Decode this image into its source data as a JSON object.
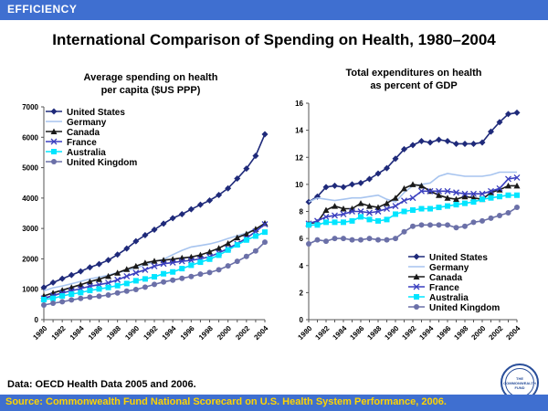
{
  "header": {
    "label": "EFFICIENCY"
  },
  "title": "International Comparison of Spending on Health, 1980–2004",
  "footnote": "Data: OECD Health Data 2005 and 2006.",
  "source": "Source: Commonwealth Fund National Scorecard on U.S. Health System Performance, 2006.",
  "logo": {
    "text": "THE COMMONWEALTH FUND"
  },
  "chart_data": [
    {
      "type": "line",
      "title_lines": [
        "Average spending on health",
        "per capita ($US PPP)"
      ],
      "xlabel": "",
      "ylabel": "",
      "ylim": [
        0,
        7000
      ],
      "yticks": [
        0,
        1000,
        2000,
        3000,
        4000,
        5000,
        6000,
        7000
      ],
      "xticks": [
        1980,
        1982,
        1984,
        1986,
        1988,
        1990,
        1992,
        1994,
        1996,
        1998,
        2000,
        2002,
        2004
      ],
      "x": [
        1980,
        1981,
        1982,
        1983,
        1984,
        1985,
        1986,
        1987,
        1988,
        1989,
        1990,
        1991,
        1992,
        1993,
        1994,
        1995,
        1996,
        1997,
        1998,
        1999,
        2000,
        2001,
        2002,
        2003,
        2004
      ],
      "legend_position": "top-left",
      "series": [
        {
          "name": "United States",
          "color": "#1f2a7a",
          "marker": "diamond",
          "values": [
            1060,
            1220,
            1350,
            1470,
            1590,
            1720,
            1830,
            1960,
            2140,
            2340,
            2580,
            2780,
            2960,
            3160,
            3340,
            3470,
            3630,
            3780,
            3920,
            4100,
            4320,
            4640,
            4970,
            5390,
            6100
          ]
        },
        {
          "name": "Germany",
          "color": "#a7c4ef",
          "marker": "none",
          "values": [
            950,
            1050,
            1110,
            1180,
            1260,
            1340,
            1400,
            1460,
            1550,
            1610,
            1700,
            1800,
            1910,
            1990,
            2140,
            2280,
            2390,
            2440,
            2490,
            2570,
            2670,
            2760,
            2850,
            2990,
            3110
          ]
        },
        {
          "name": "Canada",
          "color": "#1a1a1a",
          "marker": "triangle",
          "values": [
            780,
            880,
            970,
            1060,
            1150,
            1250,
            1330,
            1430,
            1540,
            1660,
            1760,
            1870,
            1930,
            1960,
            1990,
            2030,
            2060,
            2130,
            2230,
            2350,
            2510,
            2700,
            2820,
            2980,
            3170
          ]
        },
        {
          "name": "France",
          "color": "#3a3fbf",
          "marker": "cross",
          "values": [
            700,
            790,
            880,
            950,
            1020,
            1100,
            1150,
            1210,
            1310,
            1430,
            1540,
            1640,
            1760,
            1840,
            1880,
            1920,
            1950,
            2000,
            2070,
            2200,
            2340,
            2500,
            2680,
            2900,
            3140
          ]
        },
        {
          "name": "Australia",
          "color": "#00e5ff",
          "marker": "square",
          "values": [
            660,
            700,
            780,
            840,
            890,
            960,
            1010,
            1060,
            1120,
            1190,
            1280,
            1340,
            1410,
            1510,
            1570,
            1680,
            1790,
            1890,
            1990,
            2120,
            2290,
            2460,
            2620,
            2750,
            2880
          ]
        },
        {
          "name": "United Kingdom",
          "color": "#6b70a8",
          "marker": "circle",
          "values": [
            480,
            540,
            590,
            650,
            700,
            740,
            770,
            810,
            880,
            940,
            990,
            1070,
            1160,
            1240,
            1300,
            1360,
            1420,
            1500,
            1550,
            1640,
            1770,
            1920,
            2080,
            2260,
            2550
          ]
        }
      ]
    },
    {
      "type": "line",
      "title_lines": [
        "Total expenditures on health",
        "as percent of GDP"
      ],
      "xlabel": "",
      "ylabel": "",
      "ylim": [
        0,
        16
      ],
      "yticks": [
        0,
        2,
        4,
        6,
        8,
        10,
        12,
        14,
        16
      ],
      "xticks": [
        1980,
        1982,
        1984,
        1986,
        1988,
        1990,
        1992,
        1994,
        1996,
        1998,
        2000,
        2002,
        2004
      ],
      "x": [
        1980,
        1981,
        1982,
        1983,
        1984,
        1985,
        1986,
        1987,
        1988,
        1989,
        1990,
        1991,
        1992,
        1993,
        1994,
        1995,
        1996,
        1997,
        1998,
        1999,
        2000,
        2001,
        2002,
        2003,
        2004
      ],
      "legend_position": "bottom-right",
      "series": [
        {
          "name": "United States",
          "color": "#1f2a7a",
          "marker": "diamond",
          "values": [
            8.7,
            9.1,
            9.8,
            9.9,
            9.8,
            10.0,
            10.1,
            10.4,
            10.8,
            11.2,
            11.9,
            12.6,
            12.9,
            13.2,
            13.1,
            13.3,
            13.2,
            13.0,
            13.0,
            13.0,
            13.1,
            13.9,
            14.6,
            15.2,
            15.3
          ]
        },
        {
          "name": "Germany",
          "color": "#a7c4ef",
          "marker": "none",
          "values": [
            8.7,
            9.0,
            8.9,
            8.8,
            8.9,
            9.0,
            9.0,
            9.1,
            9.2,
            8.9,
            8.7,
            9.4,
            9.9,
            10.0,
            10.1,
            10.6,
            10.8,
            10.7,
            10.6,
            10.6,
            10.6,
            10.7,
            10.9,
            10.9,
            10.9
          ]
        },
        {
          "name": "Canada",
          "color": "#1a1a1a",
          "marker": "triangle",
          "values": [
            7.1,
            7.2,
            8.1,
            8.4,
            8.2,
            8.2,
            8.6,
            8.4,
            8.3,
            8.6,
            9.0,
            9.7,
            10.0,
            9.9,
            9.5,
            9.2,
            9.0,
            8.9,
            9.1,
            9.0,
            8.9,
            9.4,
            9.6,
            9.9,
            9.9
          ]
        },
        {
          "name": "France",
          "color": "#3a3fbf",
          "marker": "cross",
          "values": [
            7.1,
            7.3,
            7.6,
            7.7,
            7.8,
            8.0,
            8.0,
            7.9,
            8.0,
            8.2,
            8.4,
            8.8,
            9.0,
            9.5,
            9.5,
            9.5,
            9.5,
            9.4,
            9.3,
            9.3,
            9.3,
            9.5,
            9.7,
            10.4,
            10.5
          ]
        },
        {
          "name": "Australia",
          "color": "#00e5ff",
          "marker": "square",
          "values": [
            7.0,
            7.0,
            7.2,
            7.2,
            7.2,
            7.3,
            7.6,
            7.4,
            7.3,
            7.4,
            7.8,
            8.0,
            8.1,
            8.2,
            8.2,
            8.3,
            8.4,
            8.5,
            8.6,
            8.7,
            8.9,
            9.0,
            9.1,
            9.2,
            9.2
          ]
        },
        {
          "name": "United Kingdom",
          "color": "#6b70a8",
          "marker": "circle",
          "values": [
            5.6,
            5.9,
            5.8,
            6.0,
            6.0,
            5.9,
            5.9,
            6.0,
            5.9,
            5.9,
            6.0,
            6.5,
            6.9,
            7.0,
            7.0,
            7.0,
            7.0,
            6.8,
            6.9,
            7.2,
            7.3,
            7.5,
            7.7,
            7.9,
            8.3
          ]
        }
      ]
    }
  ]
}
